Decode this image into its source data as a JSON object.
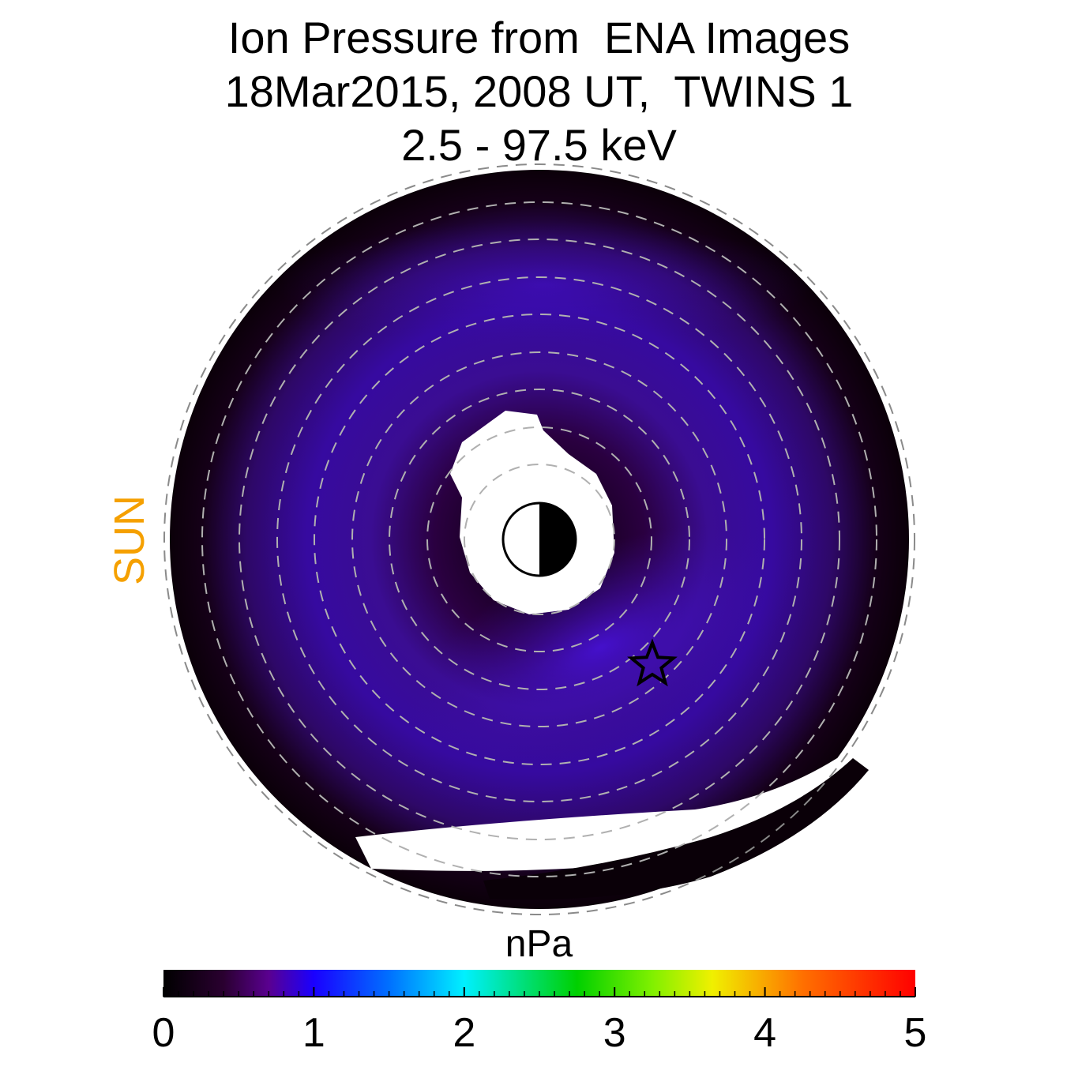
{
  "chart_data": {
    "type": "heatmap",
    "projection": "polar (equatorial plane)",
    "title_lines": [
      "Ion Pressure from  ENA Images",
      "18Mar2015, 2008 UT,  TWINS 1",
      "2.5 - 97.5 keV"
    ],
    "sun_label": "SUN",
    "sun_direction": "left",
    "colorbar": {
      "label": "nPa",
      "min": 0,
      "max": 5,
      "ticks": [
        "0",
        "1",
        "2",
        "3",
        "4",
        "5"
      ],
      "colormap": "black-purple-blue-cyan-green-yellow-red"
    },
    "pressure_max_nPa": 0.9,
    "marker": "star",
    "earth_symbol": "half-lit circle (sunlit side left)",
    "grid": "dashed concentric circles"
  }
}
